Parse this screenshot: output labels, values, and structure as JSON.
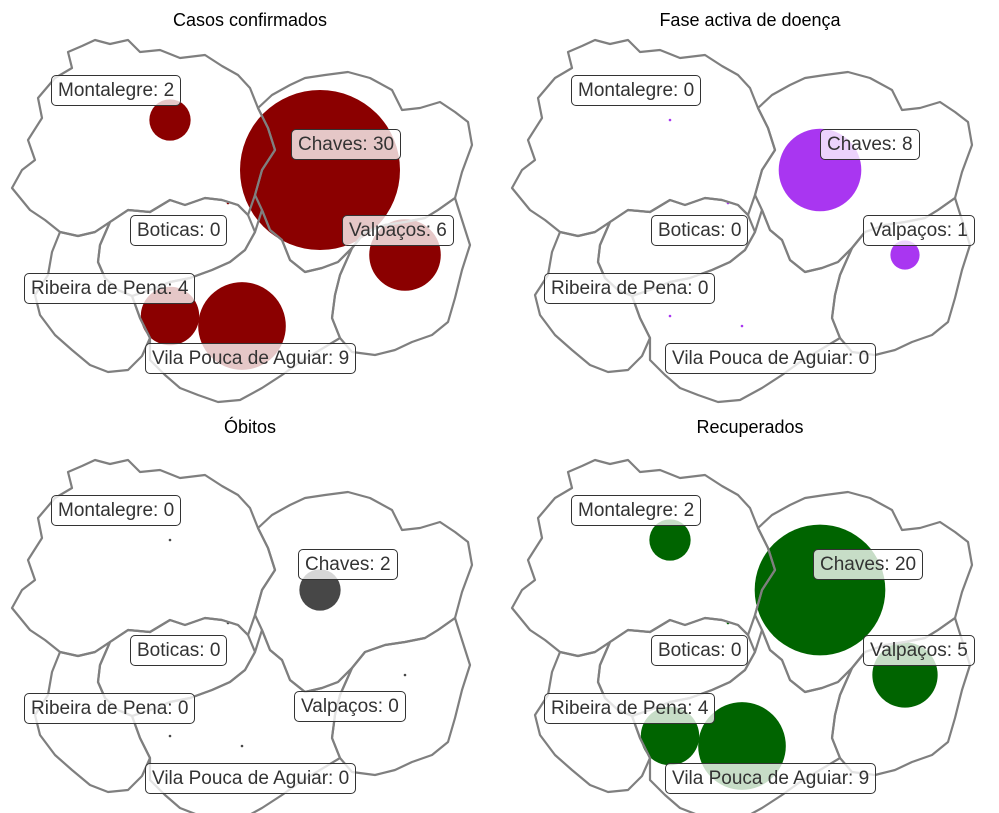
{
  "panels": [
    {
      "title": "Casos confirmados",
      "color": "#8b0000",
      "values": {
        "Montalegre": 2,
        "Chaves": 30,
        "Boticas": 0,
        "Valpaços": 6,
        "Ribeira de Pena": 4,
        "Vila Pouca de Aguiar": 9
      },
      "labels": {
        "Montalegre": "Montalegre: 2",
        "Chaves": "Chaves: 30",
        "Boticas": "Boticas: 0",
        "Valpaços": "Valpaços: 6",
        "Ribeira de Pena": "Ribeira de Pena: 4",
        "Vila Pouca de Aguiar": "Vila Pouca de Aguiar: 9"
      }
    },
    {
      "title": "Fase activa de doença",
      "color": "#a020f0",
      "values": {
        "Montalegre": 0,
        "Chaves": 8,
        "Boticas": 0,
        "Valpaços": 1,
        "Ribeira de Pena": 0,
        "Vila Pouca de Aguiar": 0
      },
      "labels": {
        "Montalegre": "Montalegre: 0",
        "Chaves": "Chaves: 8",
        "Boticas": "Boticas: 0",
        "Valpaços": "Valpaços: 1",
        "Ribeira de Pena": "Ribeira de Pena: 0",
        "Vila Pouca de Aguiar": "Vila Pouca de Aguiar: 0"
      }
    },
    {
      "title": "Óbitos",
      "color": "#333333",
      "values": {
        "Montalegre": 0,
        "Chaves": 2,
        "Boticas": 0,
        "Valpaços": 0,
        "Ribeira de Pena": 0,
        "Vila Pouca de Aguiar": 0
      },
      "labels": {
        "Montalegre": "Montalegre: 0",
        "Chaves": "Chaves: 2",
        "Boticas": "Boticas: 0",
        "Valpaços": "Valpaços: 0",
        "Ribeira de Pena": "Ribeira de Pena: 0",
        "Vila Pouca de Aguiar": "Vila Pouca de Aguiar: 0"
      }
    },
    {
      "title": "Recuperados",
      "color": "#006400",
      "values": {
        "Montalegre": 2,
        "Chaves": 20,
        "Boticas": 0,
        "Valpaços": 5,
        "Ribeira de Pena": 4,
        "Vila Pouca de Aguiar": 9
      },
      "labels": {
        "Montalegre": "Montalegre: 2",
        "Chaves": "Chaves: 20",
        "Boticas": "Boticas: 0",
        "Valpaços": "Valpaços: 5",
        "Ribeira de Pena": "Ribeira de Pena: 4",
        "Vila Pouca de Aguiar": "Vila Pouca de Aguiar: 9"
      }
    }
  ],
  "border_color": "#7f7f7f"
}
